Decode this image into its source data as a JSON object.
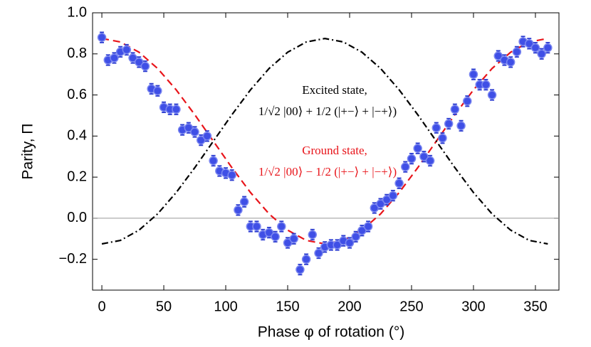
{
  "chart_data": {
    "type": "scatter",
    "xlabel": "Phase φ of rotation (°)",
    "ylabel": "Parity, Π",
    "xlim": [
      -7.5,
      369
    ],
    "ylim": [
      -0.35,
      1.0
    ],
    "xticks": [
      0,
      50,
      100,
      150,
      200,
      250,
      300,
      350
    ],
    "yticks": [
      {
        "value": -0.2,
        "label": "−0.2"
      },
      {
        "value": 0.0,
        "label": "0.0"
      },
      {
        "value": 0.2,
        "label": "0.2"
      },
      {
        "value": 0.4,
        "label": "0.4"
      },
      {
        "value": 0.6,
        "label": "0.6"
      },
      {
        "value": 0.8,
        "label": "0.8"
      },
      {
        "value": 1.0,
        "label": "1.0"
      }
    ],
    "zero_line": true,
    "series": [
      {
        "kind": "points",
        "color": "#3f4fe6",
        "x": [
          0,
          5,
          10,
          15,
          20,
          25,
          30,
          35,
          40,
          45,
          50,
          55,
          60,
          65,
          70,
          75,
          80,
          85,
          90,
          95,
          100,
          105,
          110,
          115,
          120,
          125,
          130,
          135,
          140,
          145,
          150,
          155,
          160,
          165,
          170,
          175,
          180,
          185,
          190,
          195,
          200,
          205,
          210,
          215,
          220,
          225,
          230,
          235,
          240,
          245,
          250,
          255,
          260,
          265,
          270,
          275,
          280,
          285,
          290,
          295,
          300,
          305,
          310,
          315,
          320,
          325,
          330,
          335,
          340,
          345,
          350,
          355,
          360
        ],
        "values": [
          0.88,
          0.77,
          0.78,
          0.81,
          0.82,
          0.78,
          0.76,
          0.74,
          0.63,
          0.62,
          0.54,
          0.53,
          0.53,
          0.43,
          0.44,
          0.42,
          0.38,
          0.4,
          0.28,
          0.23,
          0.22,
          0.21,
          0.04,
          0.08,
          -0.04,
          -0.04,
          -0.08,
          -0.07,
          -0.09,
          -0.04,
          -0.12,
          -0.1,
          -0.25,
          -0.2,
          -0.08,
          -0.17,
          -0.14,
          -0.13,
          -0.13,
          -0.11,
          -0.12,
          -0.09,
          -0.06,
          -0.04,
          0.05,
          0.07,
          0.09,
          0.11,
          0.17,
          0.25,
          0.29,
          0.34,
          0.3,
          0.28,
          0.44,
          0.39,
          0.46,
          0.53,
          0.45,
          0.57,
          0.7,
          0.65,
          0.65,
          0.6,
          0.79,
          0.77,
          0.76,
          0.81,
          0.86,
          0.85,
          0.83,
          0.8,
          0.83
        ],
        "errors": [
          0.025,
          0.025,
          0.025,
          0.025,
          0.025,
          0.025,
          0.025,
          0.025,
          0.025,
          0.025,
          0.025,
          0.025,
          0.025,
          0.025,
          0.025,
          0.025,
          0.025,
          0.025,
          0.025,
          0.025,
          0.025,
          0.025,
          0.025,
          0.025,
          0.025,
          0.025,
          0.025,
          0.025,
          0.025,
          0.025,
          0.025,
          0.025,
          0.025,
          0.025,
          0.025,
          0.025,
          0.025,
          0.025,
          0.025,
          0.025,
          0.025,
          0.025,
          0.025,
          0.025,
          0.025,
          0.025,
          0.025,
          0.025,
          0.025,
          0.025,
          0.025,
          0.025,
          0.025,
          0.025,
          0.025,
          0.025,
          0.025,
          0.025,
          0.025,
          0.025,
          0.025,
          0.025,
          0.025,
          0.025,
          0.025,
          0.025,
          0.025,
          0.025,
          0.025,
          0.025,
          0.025,
          0.025,
          0.025
        ]
      },
      {
        "kind": "dashed",
        "color": "#e8141a",
        "x": [
          0,
          15,
          30,
          45,
          60,
          75,
          90,
          105,
          120,
          135,
          150,
          165,
          180,
          195,
          210,
          225,
          240,
          255,
          270,
          285,
          300,
          315,
          330,
          345,
          360
        ],
        "values": [
          0.875,
          0.858,
          0.808,
          0.729,
          0.625,
          0.504,
          0.375,
          0.246,
          0.125,
          0.021,
          -0.058,
          -0.108,
          -0.125,
          -0.108,
          -0.058,
          0.021,
          0.125,
          0.246,
          0.375,
          0.504,
          0.625,
          0.729,
          0.808,
          0.858,
          0.875
        ]
      },
      {
        "kind": "dashdot",
        "color": "#000000",
        "x": [
          0,
          15,
          30,
          45,
          60,
          75,
          90,
          105,
          120,
          135,
          150,
          165,
          180,
          195,
          210,
          225,
          240,
          255,
          270,
          285,
          300,
          315,
          330,
          345,
          360
        ],
        "values": [
          -0.125,
          -0.108,
          -0.058,
          0.021,
          0.125,
          0.246,
          0.375,
          0.504,
          0.625,
          0.729,
          0.808,
          0.858,
          0.875,
          0.858,
          0.808,
          0.729,
          0.625,
          0.504,
          0.375,
          0.246,
          0.125,
          0.021,
          -0.058,
          -0.108,
          -0.125
        ]
      }
    ],
    "annotations": [
      {
        "text": "Excited state,",
        "formula": "1/√2 |00⟩ + 1/2 (|+−⟩ + |−+⟩)",
        "color": "#000000"
      },
      {
        "text": "Ground state,",
        "formula": "1/√2 |00⟩ − 1/2 (|+−⟩ + |−+⟩)",
        "color": "#e8141a"
      }
    ]
  }
}
